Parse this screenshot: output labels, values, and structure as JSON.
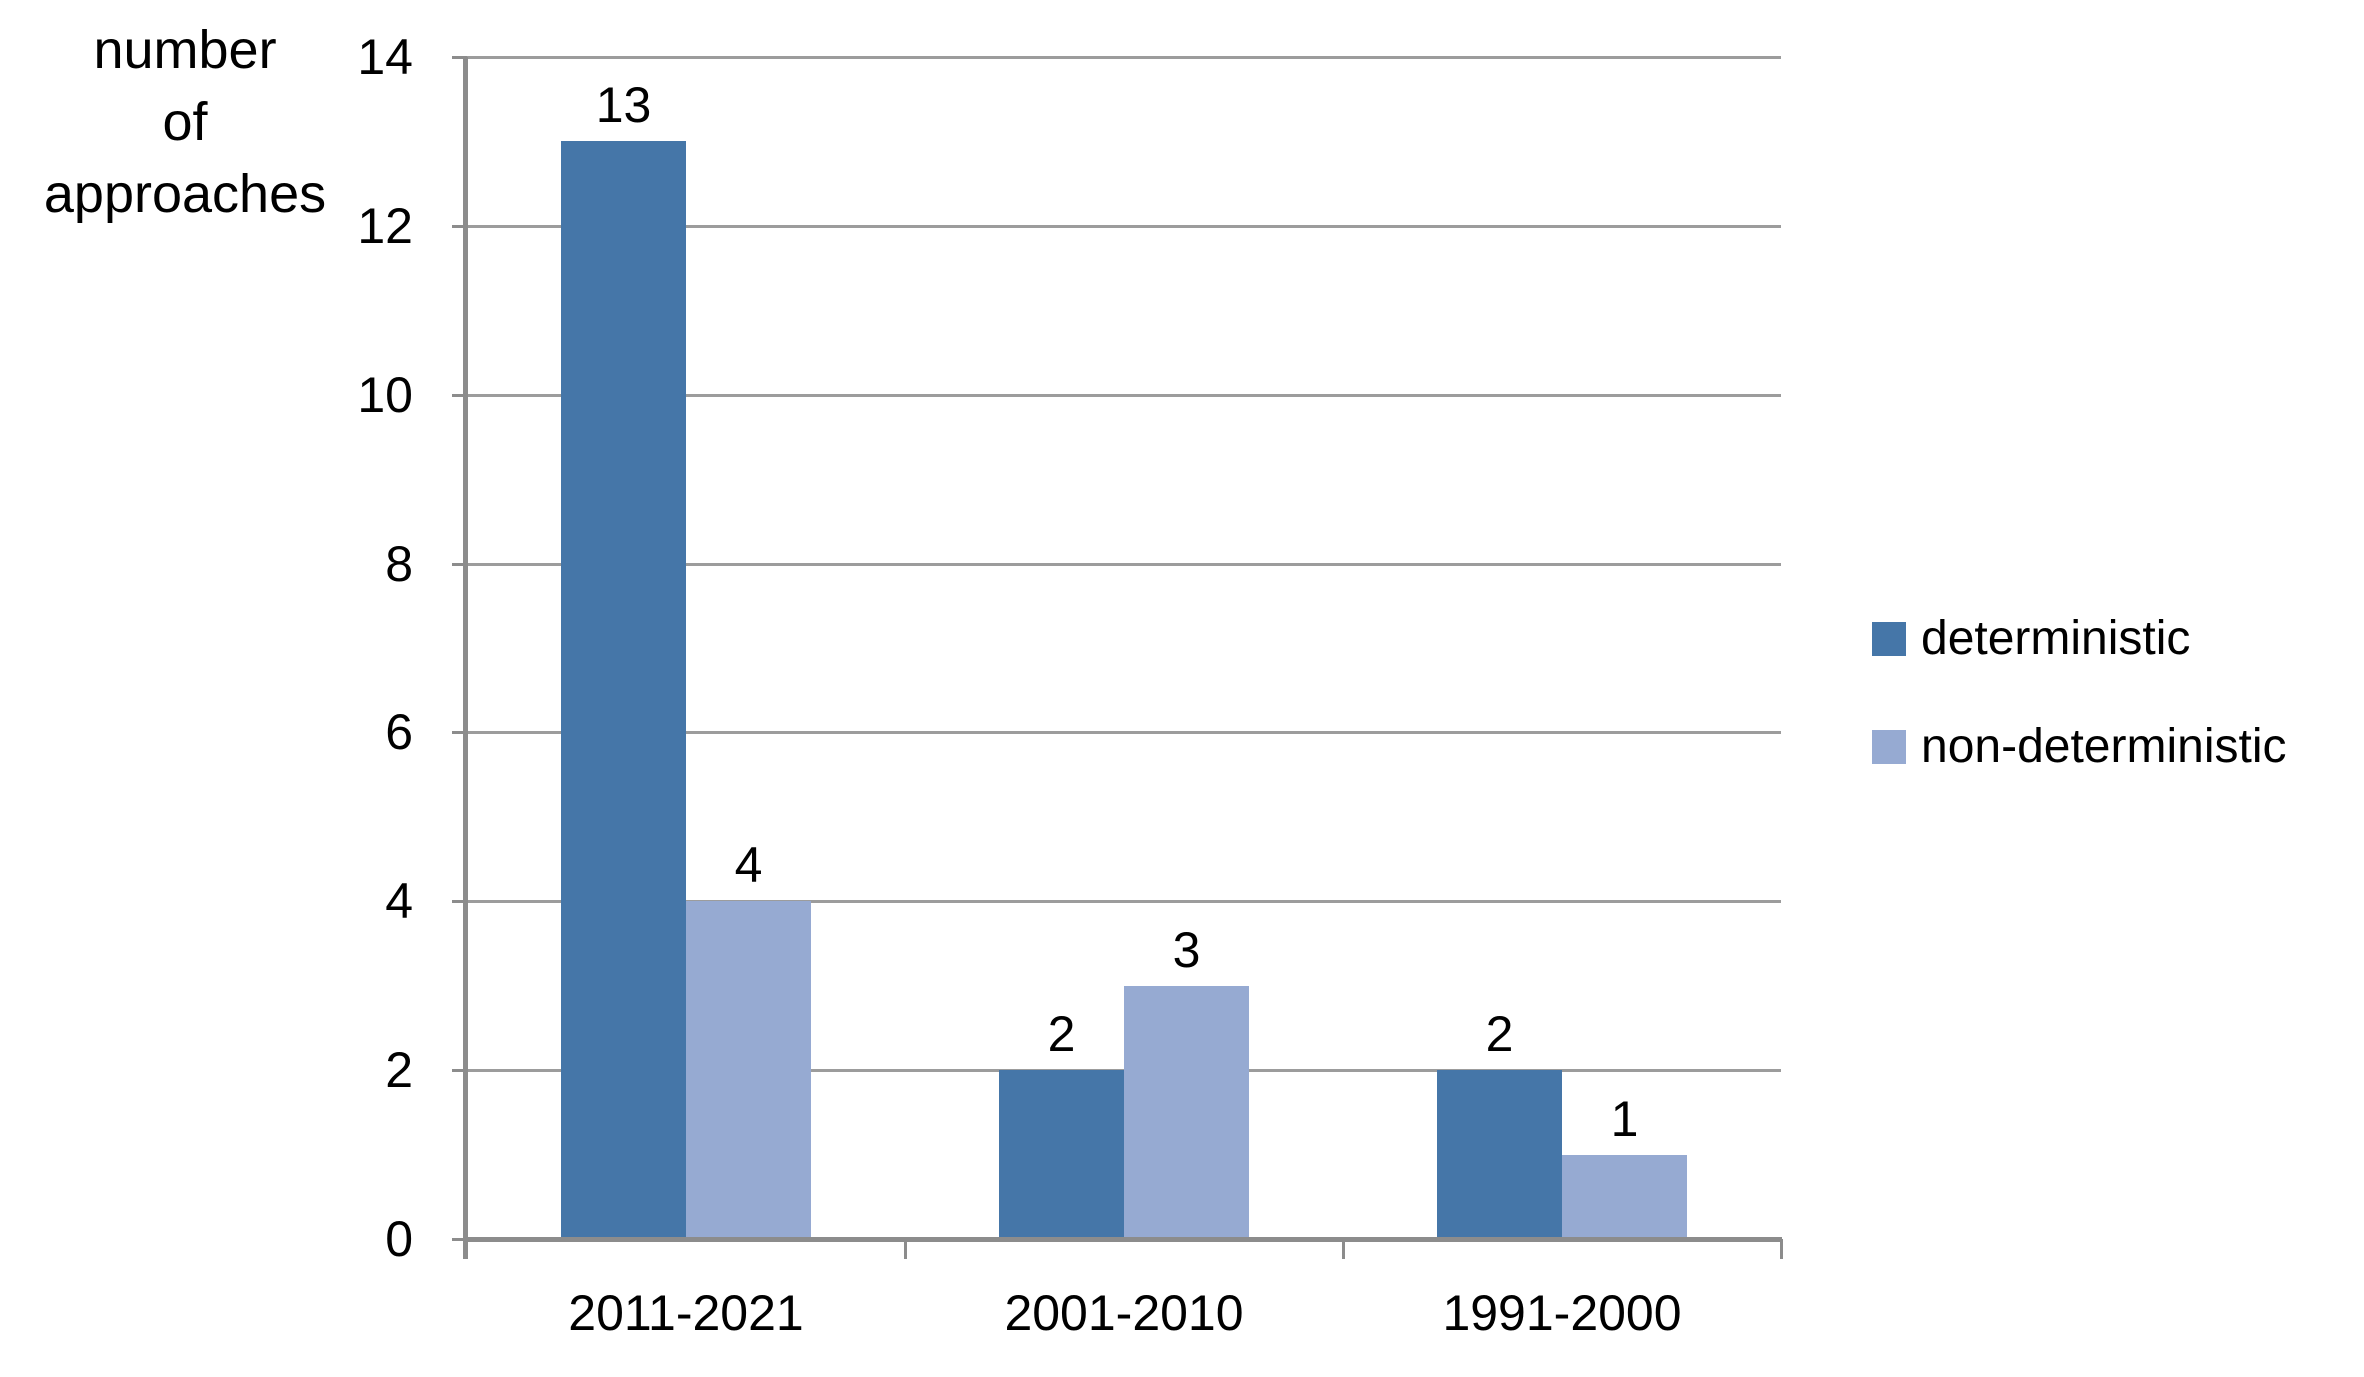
{
  "chart_data": {
    "type": "bar",
    "title": "",
    "categories": [
      "2011-2021",
      "2001-2010",
      "1991-2000"
    ],
    "series": [
      {
        "name": "deterministic",
        "color": "#4576a8",
        "values": [
          13,
          2,
          2
        ]
      },
      {
        "name": "non-deterministic",
        "color": "#96aad2",
        "values": [
          4,
          3,
          1
        ]
      }
    ],
    "data_label_values": [
      [
        13,
        2,
        2
      ],
      [
        4,
        3,
        1
      ]
    ],
    "ylabel": "number of approaches",
    "xlabel": "",
    "ylim": [
      0,
      14
    ],
    "yticks": [
      0,
      2,
      4,
      6,
      8,
      10,
      12,
      14
    ],
    "grid": true,
    "data_labels": true,
    "legend_position": "right"
  },
  "colors": {
    "bar_deterministic": "#4576a8",
    "bar_non_deterministic": "#96aad2",
    "gridline": "#9c9c9c",
    "axis": "#8c8c8c",
    "text": "#000000",
    "background": "#ffffff"
  }
}
